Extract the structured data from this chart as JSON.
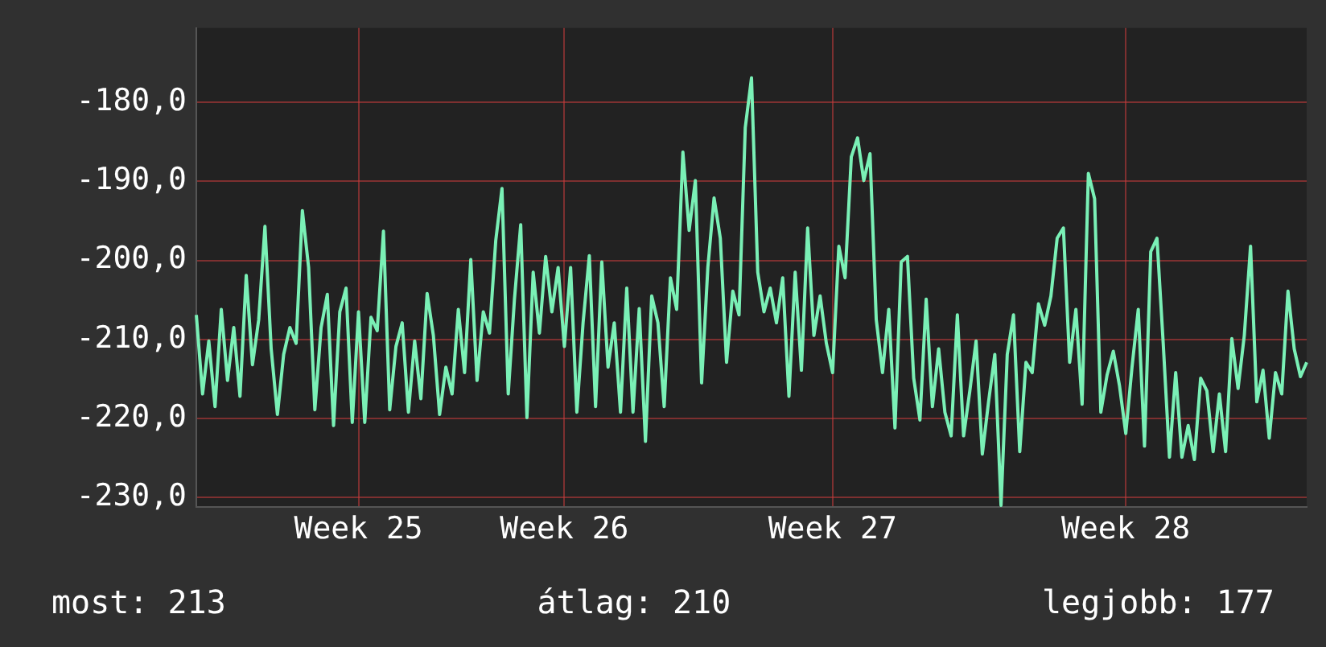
{
  "chart_data": {
    "type": "line",
    "categories": [
      null,
      null,
      null,
      null,
      null,
      null,
      null,
      null,
      null,
      null,
      null,
      null,
      null,
      null,
      null,
      null,
      null,
      null,
      null,
      null,
      null,
      null,
      null,
      null,
      null,
      null,
      "Week 25",
      null,
      null,
      null,
      null,
      null,
      null,
      null,
      null,
      null,
      null,
      null,
      null,
      null,
      null,
      null,
      null,
      null,
      null,
      null,
      null,
      null,
      null,
      null,
      null,
      null,
      null,
      null,
      null,
      null,
      null,
      null,
      null,
      "Week 26",
      null,
      null,
      null,
      null,
      null,
      null,
      null,
      null,
      null,
      null,
      null,
      null,
      null,
      null,
      null,
      null,
      null,
      null,
      null,
      null,
      null,
      null,
      null,
      null,
      null,
      null,
      null,
      null,
      null,
      null,
      null,
      null,
      null,
      null,
      null,
      null,
      null,
      null,
      null,
      null,
      null,
      null,
      "Week 27",
      null,
      null,
      null,
      null,
      null,
      null,
      null,
      null,
      null,
      null,
      null,
      null,
      null,
      null,
      null,
      null,
      null,
      null,
      null,
      null,
      null,
      null,
      null,
      null,
      null,
      null,
      null,
      null,
      null,
      null,
      null,
      null,
      null,
      null,
      null,
      null,
      null,
      null,
      null,
      null,
      null,
      null,
      null,
      null,
      null,
      null,
      "Week 28",
      null,
      null,
      null,
      null,
      null,
      null,
      null,
      null,
      null,
      null,
      null,
      null,
      null,
      null,
      null,
      null,
      null,
      null,
      null,
      null,
      null,
      null,
      null,
      null,
      null,
      null,
      null,
      null,
      null
    ],
    "series": [
      {
        "color": "#7af0b6",
        "values": [
          -206.9,
          -216.9,
          -210.2,
          -218.5,
          -206.2,
          -215.2,
          -208.5,
          -217.2,
          -201.9,
          -213.2,
          -207.5,
          -195.7,
          -211.2,
          -219.5,
          -211.9,
          -208.5,
          -210.5,
          -193.7,
          -200.9,
          -218.9,
          -208.5,
          -204.3,
          -220.9,
          -206.5,
          -203.5,
          -220.5,
          -206.5,
          -220.5,
          -207.2,
          -208.9,
          -196.3,
          -218.9,
          -210.9,
          -207.9,
          -219.2,
          -210.2,
          -217.5,
          -204.2,
          -209.5,
          -219.5,
          -213.5,
          -216.9,
          -206.2,
          -214.2,
          -199.9,
          -215.2,
          -206.5,
          -209.2,
          -197.5,
          -190.9,
          -216.9,
          -204.9,
          -195.5,
          -219.9,
          -201.5,
          -209.2,
          -199.5,
          -206.5,
          -200.9,
          -210.9,
          -200.9,
          -219.2,
          -207.9,
          -199.4,
          -218.5,
          -200.2,
          -213.5,
          -207.9,
          -219.2,
          -203.5,
          -219.2,
          -206.1,
          -222.9,
          -204.5,
          -207.9,
          -218.5,
          -202.2,
          -206.2,
          -186.3,
          -196.2,
          -189.9,
          -215.5,
          -200.9,
          -192.1,
          -197.2,
          -212.9,
          -203.9,
          -206.9,
          -183.2,
          -176.9,
          -201.5,
          -206.5,
          -203.5,
          -207.9,
          -202.2,
          -217.2,
          -201.5,
          -213.9,
          -195.9,
          -209.5,
          -204.5,
          -210.5,
          -214.2,
          -198.2,
          -202.2,
          -186.9,
          -184.5,
          -189.9,
          -186.5,
          -207.5,
          -214.2,
          -206.2,
          -221.2,
          -200.2,
          -199.5,
          -214.9,
          -220.2,
          -204.9,
          -218.5,
          -211.2,
          -219.2,
          -222.2,
          -206.9,
          -222.2,
          -216.5,
          -210.2,
          -224.5,
          -217.9,
          -211.9,
          -231.0,
          -211.9,
          -206.9,
          -224.2,
          -212.9,
          -214.2,
          -205.5,
          -208.2,
          -204.5,
          -197.2,
          -195.9,
          -212.9,
          -206.2,
          -218.2,
          -189.0,
          -192.2,
          -219.2,
          -214.5,
          -211.5,
          -215.9,
          -221.9,
          -213.5,
          -206.2,
          -223.5,
          -198.9,
          -197.2,
          -210.5,
          -224.9,
          -214.2,
          -224.9,
          -220.9,
          -225.2,
          -214.9,
          -216.5,
          -224.2,
          -216.9,
          -224.2,
          -209.9,
          -216.2,
          -209.5,
          -198.2,
          -217.9,
          -213.9,
          -222.5,
          -214.2,
          -216.9,
          -203.9,
          -211.2,
          -214.7,
          -212.9
        ]
      }
    ],
    "ylim": [
      -231.2,
      -170.6
    ],
    "yticks": [
      {
        "value": -230,
        "label": "-230,0"
      },
      {
        "value": -220,
        "label": "-220,0"
      },
      {
        "value": -210,
        "label": "-210,0"
      },
      {
        "value": -200,
        "label": "-200,0"
      },
      {
        "value": -190,
        "label": "-190,0"
      },
      {
        "value": -180,
        "label": "-180,0"
      }
    ],
    "grid": true,
    "marker": "none",
    "annotations": [
      "most: 213",
      "átlag: 210",
      "legjobb: 177"
    ]
  }
}
